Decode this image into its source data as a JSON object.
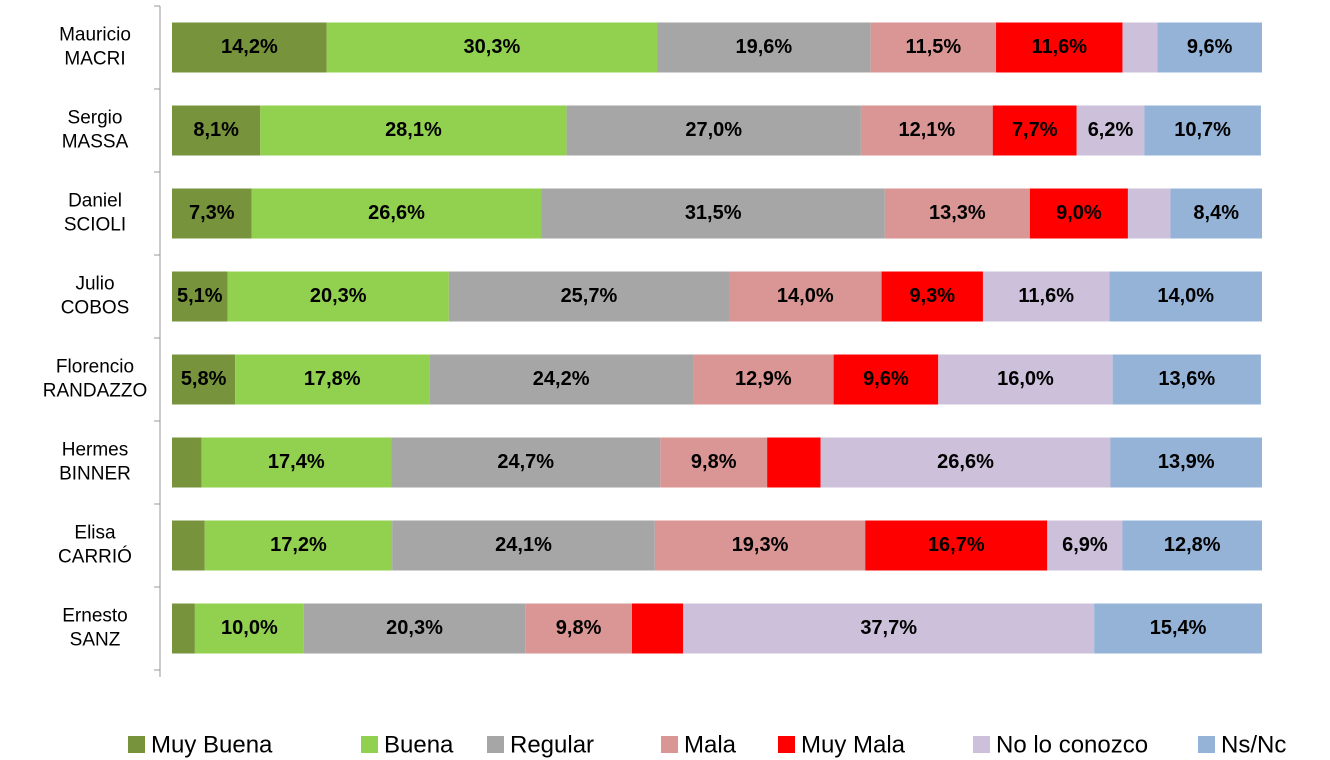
{
  "chart_data": {
    "type": "stacked-bar-horizontal",
    "categories": [
      "Mauricio\nMACRI",
      "Sergio\nMASSA",
      "Daniel\nSCIOLI",
      "Julio\nCOBOS",
      "Florencio\nRANDAZZO",
      "Hermes\nBINNER",
      "Elisa\nCARRIÓ",
      "Ernesto\nSANZ"
    ],
    "xlim": [
      0,
      100
    ],
    "legend": "bottom",
    "series": [
      {
        "name": "Muy Buena",
        "color": "#77933c",
        "values": [
          14.2,
          8.1,
          7.3,
          5.1,
          5.8,
          2.7,
          3.0,
          2.1
        ],
        "value_labels": [
          "14,2%",
          "8,1%",
          "7,3%",
          "5,1%",
          "5,8%",
          null,
          null,
          null
        ]
      },
      {
        "name": "Buena",
        "color": "#92d050",
        "values": [
          30.3,
          28.1,
          26.6,
          20.3,
          17.8,
          17.4,
          17.2,
          10.0
        ],
        "value_labels": [
          "30,3%",
          "28,1%",
          "26,6%",
          "20,3%",
          "17,8%",
          "17,4%",
          "17,2%",
          "10,0%"
        ]
      },
      {
        "name": "Regular",
        "color": "#a6a6a6",
        "values": [
          19.6,
          27.0,
          31.5,
          25.7,
          24.2,
          24.7,
          24.1,
          20.3
        ],
        "value_labels": [
          "19,6%",
          "27,0%",
          "31,5%",
          "25,7%",
          "24,2%",
          "24,7%",
          "24,1%",
          "20,3%"
        ]
      },
      {
        "name": "Mala",
        "color": "#d99694",
        "values": [
          11.5,
          12.1,
          13.3,
          14.0,
          12.9,
          9.8,
          19.3,
          9.8
        ],
        "value_labels": [
          "11,5%",
          "12,1%",
          "13,3%",
          "14,0%",
          "12,9%",
          "9,8%",
          "19,3%",
          "9,8%"
        ]
      },
      {
        "name": "Muy Mala",
        "color": "#ff0000",
        "values": [
          11.6,
          7.7,
          9.0,
          9.3,
          9.6,
          4.9,
          16.7,
          4.7
        ],
        "value_labels": [
          "11,6%",
          "7,7%",
          "9,0%",
          "9,3%",
          "9,6%",
          null,
          "16,7%",
          null
        ]
      },
      {
        "name": "No lo conozco",
        "color": "#ccc0da",
        "values": [
          3.2,
          6.2,
          3.9,
          11.6,
          16.0,
          26.6,
          6.9,
          37.7
        ],
        "value_labels": [
          null,
          "6,2%",
          null,
          "11,6%",
          "16,0%",
          "26,6%",
          "6,9%",
          "37,7%"
        ]
      },
      {
        "name": "Ns/Nc",
        "color": "#95b3d7",
        "values": [
          9.6,
          10.7,
          8.4,
          14.0,
          13.6,
          13.9,
          12.8,
          15.4
        ],
        "value_labels": [
          "9,6%",
          "10,7%",
          "8,4%",
          "14,0%",
          "13,6%",
          "13,9%",
          "12,8%",
          "15,4%"
        ]
      }
    ]
  }
}
